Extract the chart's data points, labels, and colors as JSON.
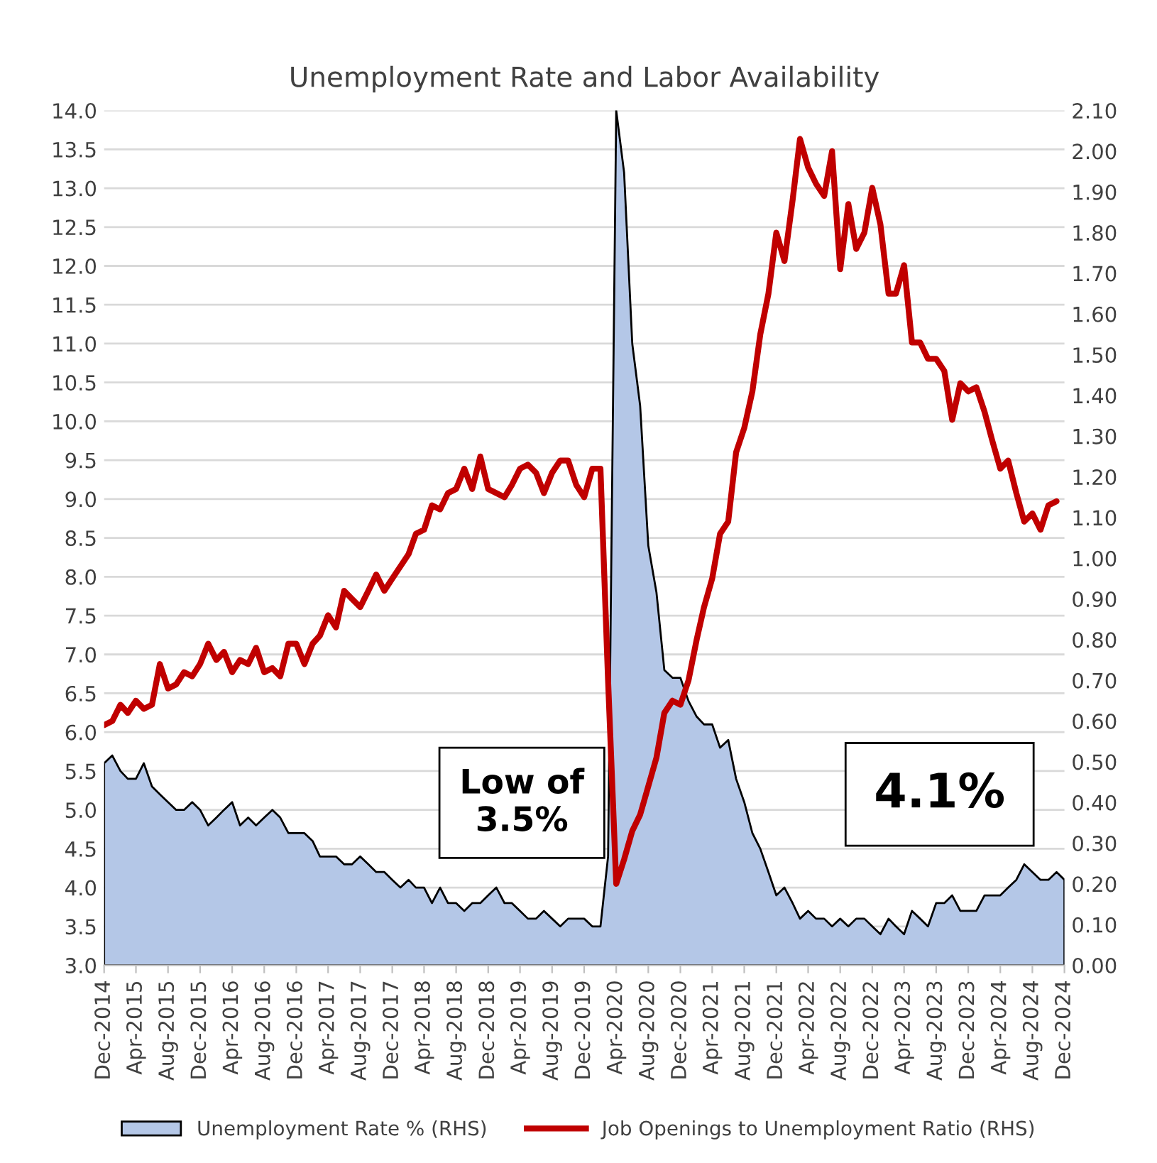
{
  "chart_data": {
    "type": "area",
    "title": "Unemployment Rate and Labor Availability",
    "x": [
      "2014-12",
      "2015-01",
      "2015-02",
      "2015-03",
      "2015-04",
      "2015-05",
      "2015-06",
      "2015-07",
      "2015-08",
      "2015-09",
      "2015-10",
      "2015-11",
      "2015-12",
      "2016-01",
      "2016-02",
      "2016-03",
      "2016-04",
      "2016-05",
      "2016-06",
      "2016-07",
      "2016-08",
      "2016-09",
      "2016-10",
      "2016-11",
      "2016-12",
      "2017-01",
      "2017-02",
      "2017-03",
      "2017-04",
      "2017-05",
      "2017-06",
      "2017-07",
      "2017-08",
      "2017-09",
      "2017-10",
      "2017-11",
      "2017-12",
      "2018-01",
      "2018-02",
      "2018-03",
      "2018-04",
      "2018-05",
      "2018-06",
      "2018-07",
      "2018-08",
      "2018-09",
      "2018-10",
      "2018-11",
      "2018-12",
      "2019-01",
      "2019-02",
      "2019-03",
      "2019-04",
      "2019-05",
      "2019-06",
      "2019-07",
      "2019-08",
      "2019-09",
      "2019-10",
      "2019-11",
      "2019-12",
      "2020-01",
      "2020-02",
      "2020-03",
      "2020-04",
      "2020-05",
      "2020-06",
      "2020-07",
      "2020-08",
      "2020-09",
      "2020-10",
      "2020-11",
      "2020-12",
      "2021-01",
      "2021-02",
      "2021-03",
      "2021-04",
      "2021-05",
      "2021-06",
      "2021-07",
      "2021-08",
      "2021-09",
      "2021-10",
      "2021-11",
      "2021-12",
      "2022-01",
      "2022-02",
      "2022-03",
      "2022-04",
      "2022-05",
      "2022-06",
      "2022-07",
      "2022-08",
      "2022-09",
      "2022-10",
      "2022-11",
      "2022-12",
      "2023-01",
      "2023-02",
      "2023-03",
      "2023-04",
      "2023-05",
      "2023-06",
      "2023-07",
      "2023-08",
      "2023-09",
      "2023-10",
      "2023-11",
      "2023-12",
      "2024-01",
      "2024-02",
      "2024-03",
      "2024-04",
      "2024-05",
      "2024-06",
      "2024-07",
      "2024-08",
      "2024-09",
      "2024-10",
      "2024-11",
      "2024-12"
    ],
    "series": [
      {
        "name": "Unemployment Rate % (RHS)",
        "color": "#b4c7e7",
        "values": [
          5.6,
          5.7,
          5.5,
          5.4,
          5.4,
          5.6,
          5.3,
          5.2,
          5.1,
          5.0,
          5.0,
          5.1,
          5.0,
          4.8,
          4.9,
          5.0,
          5.1,
          4.8,
          4.9,
          4.8,
          4.9,
          5.0,
          4.9,
          4.7,
          4.7,
          4.7,
          4.6,
          4.4,
          4.4,
          4.4,
          4.3,
          4.3,
          4.4,
          4.3,
          4.2,
          4.2,
          4.1,
          4.0,
          4.1,
          4.0,
          4.0,
          3.8,
          4.0,
          3.8,
          3.8,
          3.7,
          3.8,
          3.8,
          3.9,
          4.0,
          3.8,
          3.8,
          3.7,
          3.6,
          3.6,
          3.7,
          3.6,
          3.5,
          3.6,
          3.6,
          3.6,
          3.5,
          3.5,
          4.4,
          14.0,
          13.2,
          11.0,
          10.2,
          8.4,
          7.8,
          6.8,
          6.7,
          6.7,
          6.4,
          6.2,
          6.1,
          6.1,
          5.8,
          5.9,
          5.4,
          5.1,
          4.7,
          4.5,
          4.2,
          3.9,
          4.0,
          3.8,
          3.6,
          3.7,
          3.6,
          3.6,
          3.5,
          3.6,
          3.5,
          3.6,
          3.6,
          3.5,
          3.4,
          3.6,
          3.5,
          3.4,
          3.7,
          3.6,
          3.5,
          3.8,
          3.8,
          3.9,
          3.7,
          3.7,
          3.7,
          3.9,
          3.9,
          3.9,
          4.0,
          4.1,
          4.3,
          4.2,
          4.1,
          4.1,
          4.2,
          4.1
        ]
      },
      {
        "name": "Job Openings to Unemployment Ratio (RHS)",
        "type": "line",
        "axis": "y2",
        "color": "#c00000",
        "values": [
          0.59,
          0.6,
          0.64,
          0.62,
          0.65,
          0.63,
          0.64,
          0.74,
          0.68,
          0.69,
          0.72,
          0.71,
          0.74,
          0.79,
          0.75,
          0.77,
          0.72,
          0.75,
          0.74,
          0.78,
          0.72,
          0.73,
          0.71,
          0.79,
          0.79,
          0.74,
          0.79,
          0.81,
          0.86,
          0.83,
          0.92,
          0.9,
          0.88,
          0.92,
          0.96,
          0.92,
          0.95,
          0.98,
          1.01,
          1.06,
          1.07,
          1.13,
          1.12,
          1.16,
          1.17,
          1.22,
          1.17,
          1.25,
          1.17,
          1.16,
          1.15,
          1.18,
          1.22,
          1.23,
          1.21,
          1.16,
          1.21,
          1.24,
          1.24,
          1.18,
          1.15,
          1.22,
          1.22,
          0.7,
          0.2,
          0.26,
          0.33,
          0.37,
          0.44,
          0.51,
          0.62,
          0.65,
          0.64,
          0.7,
          0.8,
          0.88,
          0.95,
          1.06,
          1.09,
          1.26,
          1.32,
          1.41,
          1.55,
          1.65,
          1.8,
          1.73,
          1.88,
          2.03,
          1.96,
          1.92,
          1.89,
          2.0,
          1.71,
          1.87,
          1.76,
          1.8,
          1.91,
          1.82,
          1.65,
          1.65,
          1.72,
          1.53,
          1.53,
          1.49,
          1.49,
          1.46,
          1.34,
          1.43,
          1.41,
          1.42,
          1.36,
          1.29,
          1.22,
          1.24,
          1.16,
          1.09,
          1.11,
          1.07,
          1.13,
          1.14,
          null
        ]
      }
    ],
    "xlim": [
      "2014-12",
      "2024-12"
    ],
    "xticks": [
      {
        "value": "2014-12",
        "label": "Dec-2014"
      },
      {
        "value": "2015-04",
        "label": "Apr-2015"
      },
      {
        "value": "2015-08",
        "label": "Aug-2015"
      },
      {
        "value": "2015-12",
        "label": "Dec-2015"
      },
      {
        "value": "2016-04",
        "label": "Apr-2016"
      },
      {
        "value": "2016-08",
        "label": "Aug-2016"
      },
      {
        "value": "2016-12",
        "label": "Dec-2016"
      },
      {
        "value": "2017-04",
        "label": "Apr-2017"
      },
      {
        "value": "2017-08",
        "label": "Aug-2017"
      },
      {
        "value": "2017-12",
        "label": "Dec-2017"
      },
      {
        "value": "2018-04",
        "label": "Apr-2018"
      },
      {
        "value": "2018-08",
        "label": "Aug-2018"
      },
      {
        "value": "2018-12",
        "label": "Dec-2018"
      },
      {
        "value": "2019-04",
        "label": "Apr-2019"
      },
      {
        "value": "2019-08",
        "label": "Aug-2019"
      },
      {
        "value": "2019-12",
        "label": "Dec-2019"
      },
      {
        "value": "2020-04",
        "label": "Apr-2020"
      },
      {
        "value": "2020-08",
        "label": "Aug-2020"
      },
      {
        "value": "2020-12",
        "label": "Dec-2020"
      },
      {
        "value": "2021-04",
        "label": "Apr-2021"
      },
      {
        "value": "2021-08",
        "label": "Aug-2021"
      },
      {
        "value": "2021-12",
        "label": "Dec-2021"
      },
      {
        "value": "2022-04",
        "label": "Apr-2022"
      },
      {
        "value": "2022-08",
        "label": "Aug-2022"
      },
      {
        "value": "2022-12",
        "label": "Dec-2022"
      },
      {
        "value": "2023-04",
        "label": "Apr-2023"
      },
      {
        "value": "2023-08",
        "label": "Aug-2023"
      },
      {
        "value": "2023-12",
        "label": "Dec-2023"
      },
      {
        "value": "2024-04",
        "label": "Apr-2024"
      },
      {
        "value": "2024-08",
        "label": "Aug-2024"
      },
      {
        "value": "2024-12",
        "label": "Dec-2024"
      }
    ],
    "ylim": [
      3.0,
      14.0
    ],
    "yticks": [
      {
        "value": 3.0,
        "label": "3.0"
      },
      3.5,
      {
        "value": 4.0,
        "label": "4.0"
      },
      4.5,
      {
        "value": 5.0,
        "label": "5.0"
      },
      5.5,
      {
        "value": 6.0,
        "label": "6.0"
      },
      6.5,
      {
        "value": 7.0,
        "label": "7.0"
      },
      7.5,
      {
        "value": 8.0,
        "label": "8.0"
      },
      8.5,
      {
        "value": 9.0,
        "label": "9.0"
      },
      9.5,
      {
        "value": 10.0,
        "label": "10.0"
      },
      10.5,
      {
        "value": 11.0,
        "label": "11.0"
      },
      11.5,
      {
        "value": 12.0,
        "label": "12.0"
      },
      12.5,
      {
        "value": 13.0,
        "label": "13.0"
      },
      13.5,
      {
        "value": 14.0,
        "label": "14.0"
      }
    ],
    "y2lim": [
      0.0,
      2.1
    ],
    "y2ticks": [
      {
        "value": 0.0,
        "label": "0.00"
      },
      {
        "value": 0.1,
        "label": "0.10"
      },
      {
        "value": 0.2,
        "label": "0.20"
      },
      {
        "value": 0.3,
        "label": "0.30"
      },
      {
        "value": 0.4,
        "label": "0.40"
      },
      {
        "value": 0.5,
        "label": "0.50"
      },
      {
        "value": 0.6,
        "label": "0.60"
      },
      {
        "value": 0.7,
        "label": "0.70"
      },
      {
        "value": 0.8,
        "label": "0.80"
      },
      {
        "value": 0.9,
        "label": "0.90"
      },
      {
        "value": 1.0,
        "label": "1.00"
      },
      {
        "value": 1.1,
        "label": "1.10"
      },
      {
        "value": 1.2,
        "label": "1.20"
      },
      {
        "value": 1.3,
        "label": "1.30"
      },
      {
        "value": 1.4,
        "label": "1.40"
      },
      {
        "value": 1.5,
        "label": "1.50"
      },
      {
        "value": 1.6,
        "label": "1.60"
      },
      {
        "value": 1.7,
        "label": "1.70"
      },
      {
        "value": 1.8,
        "label": "1.80"
      },
      {
        "value": 1.9,
        "label": "1.90"
      },
      {
        "value": 2.0,
        "label": "2.00"
      },
      {
        "value": 2.1,
        "label": "2.10"
      }
    ],
    "annotations": [
      "Low of\n3.5%",
      "4.1%"
    ],
    "grid": "y",
    "legend": "bottom"
  }
}
